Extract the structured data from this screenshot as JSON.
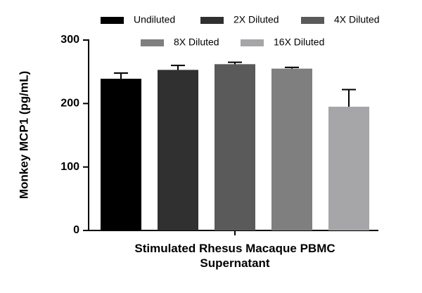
{
  "chart_data": {
    "type": "bar",
    "ylabel": "Monkey MCP1 (pg/mL)",
    "categories": [
      "Stimulated Rhesus Macaque PBMC Supernatant"
    ],
    "series": [
      {
        "name": "Undiluted",
        "color": "#000000",
        "values": [
          239
        ],
        "errors": [
          9
        ]
      },
      {
        "name": "2X Diluted",
        "color": "#303030",
        "values": [
          253
        ],
        "errors": [
          7
        ]
      },
      {
        "name": "4X Diluted",
        "color": "#5a5a5a",
        "values": [
          262
        ],
        "errors": [
          3
        ]
      },
      {
        "name": "8X Diluted",
        "color": "#7f7f7f",
        "values": [
          255
        ],
        "errors": [
          2
        ]
      },
      {
        "name": "16X Diluted",
        "color": "#a6a6a8",
        "values": [
          195
        ],
        "errors": [
          27
        ]
      }
    ],
    "ylim": [
      0,
      300
    ],
    "yticks": [
      0,
      100,
      200,
      300
    ]
  }
}
